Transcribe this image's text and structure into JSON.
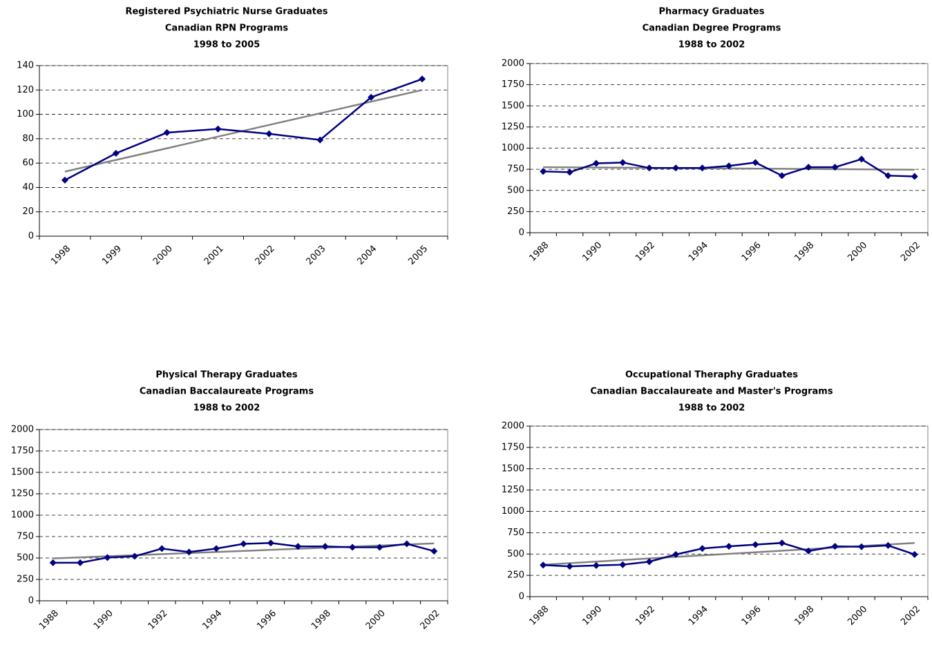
{
  "chart_data": [
    {
      "type": "line",
      "title": [
        "Registered Psychiatric Nurse Graduates",
        "Canadian RPN Programs",
        "1998 to 2005"
      ],
      "categories": [
        "1998",
        "1999",
        "2000",
        "2001",
        "2002",
        "2003",
        "2004",
        "2005"
      ],
      "values": [
        46,
        68,
        85,
        88,
        84,
        79,
        114,
        129
      ],
      "color": "#000080",
      "trend": {
        "color": "#808080",
        "start": 53,
        "end": 120
      },
      "ylim": [
        0,
        140
      ],
      "yticks": [
        0,
        20,
        40,
        60,
        80,
        100,
        120,
        140
      ],
      "grid": true
    },
    {
      "type": "line",
      "title": [
        "Pharmacy Graduates",
        "Canadian Degree Programs",
        "1988 to 2002"
      ],
      "categories": [
        "1988",
        null,
        "1990",
        null,
        "1992",
        null,
        "1994",
        null,
        "1996",
        null,
        "1998",
        null,
        "2000",
        null,
        "2002"
      ],
      "values": [
        725,
        715,
        820,
        830,
        765,
        765,
        765,
        790,
        830,
        675,
        775,
        775,
        870,
        675,
        665
      ],
      "color": "#000080",
      "trend": {
        "color": "#808080",
        "start": 775,
        "end": 745
      },
      "ylim": [
        0,
        2000
      ],
      "yticks": [
        0,
        250,
        500,
        750,
        1000,
        1250,
        1500,
        1750,
        2000
      ],
      "grid": true
    },
    {
      "type": "line",
      "title": [
        "Physical Therapy Graduates",
        "Canadian Baccalaureate Programs",
        "1988 to 2002"
      ],
      "categories": [
        "1988",
        null,
        "1990",
        null,
        "1992",
        null,
        "1994",
        null,
        "1996",
        null,
        "1998",
        null,
        "2000",
        null,
        "2002"
      ],
      "values": [
        445,
        445,
        505,
        520,
        610,
        570,
        610,
        665,
        675,
        635,
        635,
        625,
        625,
        665,
        580
      ],
      "color": "#000080",
      "trend": {
        "color": "#808080",
        "start": 495,
        "end": 670
      },
      "ylim": [
        0,
        2000
      ],
      "yticks": [
        0,
        250,
        500,
        750,
        1000,
        1250,
        1500,
        1750,
        2000
      ],
      "grid": true
    },
    {
      "type": "line",
      "title": [
        "Occupational Theraphy Graduates",
        "Canadian Baccalaureate and Master's Programs",
        "1988 to 2002"
      ],
      "categories": [
        "1988",
        null,
        "1990",
        null,
        "1992",
        null,
        "1994",
        null,
        "1996",
        null,
        "1998",
        null,
        "2000",
        null,
        "2002"
      ],
      "values": [
        370,
        355,
        365,
        375,
        410,
        495,
        565,
        590,
        610,
        630,
        535,
        590,
        585,
        600,
        495
      ],
      "color": "#000080",
      "trend": {
        "color": "#808080",
        "start": 375,
        "end": 630
      },
      "ylim": [
        0,
        2000
      ],
      "yticks": [
        0,
        250,
        500,
        750,
        1000,
        1250,
        1500,
        1750,
        2000
      ],
      "grid": true
    }
  ]
}
